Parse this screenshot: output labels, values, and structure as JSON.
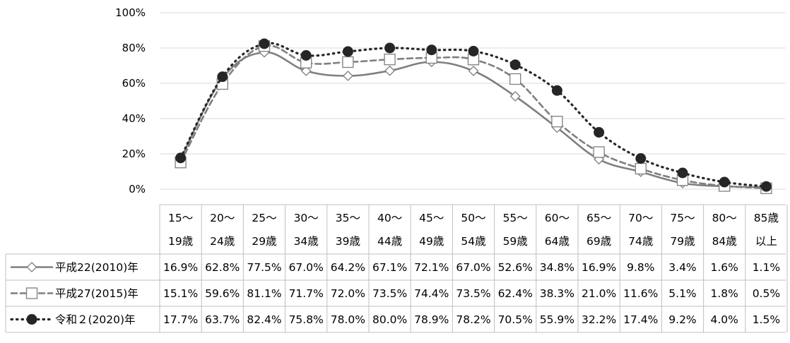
{
  "chart_data": {
    "type": "line",
    "title": "",
    "xlabel": "",
    "ylabel": "",
    "ylim": [
      0,
      100
    ],
    "y_ticks": [
      "0%",
      "20%",
      "40%",
      "60%",
      "80%",
      "100%"
    ],
    "y_tick_values": [
      0,
      20,
      40,
      60,
      80,
      100
    ],
    "grid": true,
    "legend": "table-left",
    "categories": [
      [
        "15～",
        "19歳"
      ],
      [
        "20～",
        "24歳"
      ],
      [
        "25～",
        "29歳"
      ],
      [
        "30～",
        "34歳"
      ],
      [
        "35～",
        "39歳"
      ],
      [
        "40～",
        "44歳"
      ],
      [
        "45～",
        "49歳"
      ],
      [
        "50～",
        "54歳"
      ],
      [
        "55～",
        "59歳"
      ],
      [
        "60～",
        "64歳"
      ],
      [
        "65～",
        "69歳"
      ],
      [
        "70～",
        "74歳"
      ],
      [
        "75～",
        "79歳"
      ],
      [
        "80～",
        "84歳"
      ],
      [
        "85歳",
        "以上"
      ]
    ],
    "series": [
      {
        "name": "平成22(2010)年",
        "style": "solid",
        "marker": "diamond",
        "color": "#7f7f7f",
        "values": [
          16.9,
          62.8,
          77.5,
          67.0,
          64.2,
          67.1,
          72.1,
          67.0,
          52.6,
          34.8,
          16.9,
          9.8,
          3.4,
          1.6,
          1.1
        ],
        "labels": [
          "16.9%",
          "62.8%",
          "77.5%",
          "67.0%",
          "64.2%",
          "67.1%",
          "72.1%",
          "67.0%",
          "52.6%",
          "34.8%",
          "16.9%",
          "9.8%",
          "3.4%",
          "1.6%",
          "1.1%"
        ]
      },
      {
        "name": "平成27(2015)年",
        "style": "dashed",
        "marker": "square",
        "color": "#7f7f7f",
        "values": [
          15.1,
          59.6,
          81.1,
          71.7,
          72.0,
          73.5,
          74.4,
          73.5,
          62.4,
          38.3,
          21.0,
          11.6,
          5.1,
          1.8,
          0.5
        ],
        "labels": [
          "15.1%",
          "59.6%",
          "81.1%",
          "71.7%",
          "72.0%",
          "73.5%",
          "74.4%",
          "73.5%",
          "62.4%",
          "38.3%",
          "21.0%",
          "11.6%",
          "5.1%",
          "1.8%",
          "0.5%"
        ]
      },
      {
        "name": "令和２(2020)年",
        "style": "dotted",
        "marker": "circle",
        "color": "#262626",
        "values": [
          17.7,
          63.7,
          82.4,
          75.8,
          78.0,
          80.0,
          78.9,
          78.2,
          70.5,
          55.9,
          32.2,
          17.4,
          9.2,
          4.0,
          1.5
        ],
        "labels": [
          "17.7%",
          "63.7%",
          "82.4%",
          "75.8%",
          "78.0%",
          "80.0%",
          "78.9%",
          "78.2%",
          "70.5%",
          "55.9%",
          "32.2%",
          "17.4%",
          "9.2%",
          "4.0%",
          "1.5%"
        ]
      }
    ]
  }
}
